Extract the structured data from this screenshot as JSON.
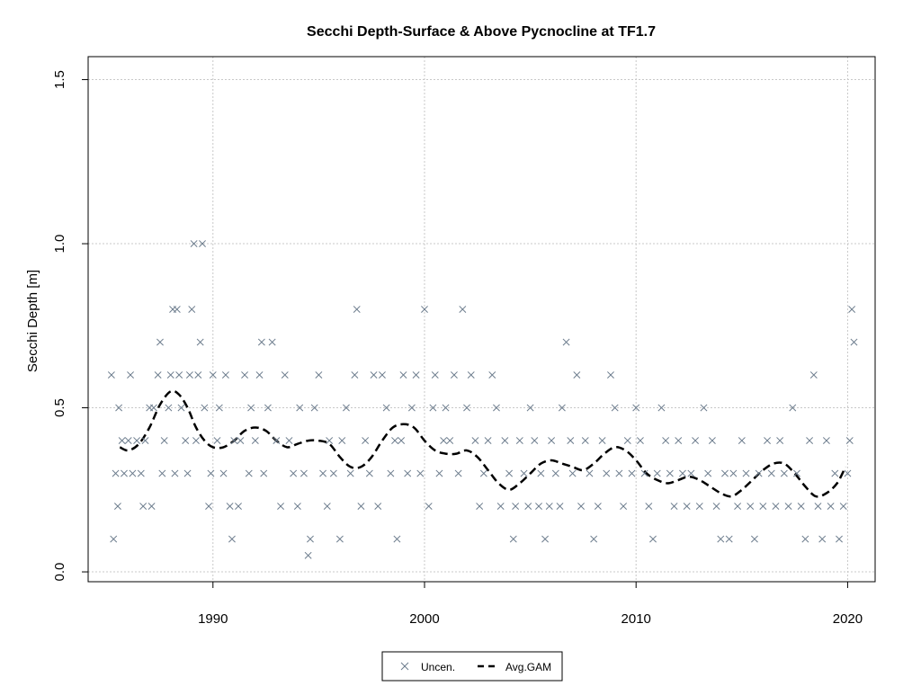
{
  "chart_data": {
    "type": "scatter",
    "title": "Secchi Depth-Surface & Above Pycnocline at TF1.7",
    "xlabel": "",
    "ylabel": "Secchi Depth [m]",
    "xlim": [
      1984.1,
      2021.3
    ],
    "ylim": [
      -0.03,
      1.57
    ],
    "x_ticks": [
      1990,
      2000,
      2010,
      2020
    ],
    "y_ticks": [
      0.0,
      0.5,
      1.0,
      1.5
    ],
    "x_tick_labels": [
      "1990",
      "2000",
      "2010",
      "2020"
    ],
    "y_tick_labels": [
      "0.0",
      "0.5",
      "1.0",
      "1.5"
    ],
    "grid": true,
    "legend": {
      "position": "bottom-center",
      "entries": [
        {
          "label": "Uncen.",
          "marker": "x",
          "color": "#6b7b8c"
        },
        {
          "label": "Avg.GAM",
          "style": "dashed",
          "color": "#000000"
        }
      ]
    },
    "series": [
      {
        "name": "Uncen.",
        "kind": "scatter",
        "marker": "x",
        "color": "#6b7b8c",
        "points": [
          [
            1985.2,
            0.6
          ],
          [
            1985.3,
            0.1
          ],
          [
            1985.4,
            0.3
          ],
          [
            1985.5,
            0.2
          ],
          [
            1985.55,
            0.5
          ],
          [
            1985.7,
            0.4
          ],
          [
            1985.8,
            0.3
          ],
          [
            1986.0,
            0.4
          ],
          [
            1986.1,
            0.6
          ],
          [
            1986.2,
            0.3
          ],
          [
            1986.4,
            0.4
          ],
          [
            1986.6,
            0.3
          ],
          [
            1986.7,
            0.2
          ],
          [
            1986.8,
            0.4
          ],
          [
            1987.0,
            0.5
          ],
          [
            1987.1,
            0.2
          ],
          [
            1987.2,
            0.5
          ],
          [
            1987.4,
            0.6
          ],
          [
            1987.5,
            0.7
          ],
          [
            1987.6,
            0.3
          ],
          [
            1987.7,
            0.4
          ],
          [
            1987.9,
            0.5
          ],
          [
            1988.0,
            0.6
          ],
          [
            1988.1,
            0.8
          ],
          [
            1988.2,
            0.3
          ],
          [
            1988.3,
            0.8
          ],
          [
            1988.4,
            0.6
          ],
          [
            1988.5,
            0.5
          ],
          [
            1988.7,
            0.4
          ],
          [
            1988.8,
            0.3
          ],
          [
            1988.9,
            0.6
          ],
          [
            1989.0,
            0.8
          ],
          [
            1989.1,
            1.0
          ],
          [
            1989.2,
            0.4
          ],
          [
            1989.3,
            0.6
          ],
          [
            1989.4,
            0.7
          ],
          [
            1989.5,
            1.0
          ],
          [
            1989.6,
            0.5
          ],
          [
            1989.8,
            0.2
          ],
          [
            1989.9,
            0.3
          ],
          [
            1990.0,
            0.6
          ],
          [
            1990.2,
            0.4
          ],
          [
            1990.3,
            0.5
          ],
          [
            1990.5,
            0.3
          ],
          [
            1990.6,
            0.6
          ],
          [
            1990.8,
            0.2
          ],
          [
            1990.9,
            0.1
          ],
          [
            1991.0,
            0.4
          ],
          [
            1991.2,
            0.2
          ],
          [
            1991.3,
            0.4
          ],
          [
            1991.5,
            0.6
          ],
          [
            1991.7,
            0.3
          ],
          [
            1991.8,
            0.5
          ],
          [
            1992.0,
            0.4
          ],
          [
            1992.2,
            0.6
          ],
          [
            1992.3,
            0.7
          ],
          [
            1992.4,
            0.3
          ],
          [
            1992.6,
            0.5
          ],
          [
            1992.8,
            0.7
          ],
          [
            1993.0,
            0.4
          ],
          [
            1993.2,
            0.2
          ],
          [
            1993.4,
            0.6
          ],
          [
            1993.6,
            0.4
          ],
          [
            1993.8,
            0.3
          ],
          [
            1994.0,
            0.2
          ],
          [
            1994.1,
            0.5
          ],
          [
            1994.3,
            0.3
          ],
          [
            1994.5,
            0.05
          ],
          [
            1994.6,
            0.1
          ],
          [
            1994.8,
            0.5
          ],
          [
            1995.0,
            0.6
          ],
          [
            1995.2,
            0.3
          ],
          [
            1995.4,
            0.2
          ],
          [
            1995.5,
            0.4
          ],
          [
            1995.7,
            0.3
          ],
          [
            1996.0,
            0.1
          ],
          [
            1996.1,
            0.4
          ],
          [
            1996.3,
            0.5
          ],
          [
            1996.5,
            0.3
          ],
          [
            1996.7,
            0.6
          ],
          [
            1996.8,
            0.8
          ],
          [
            1997.0,
            0.2
          ],
          [
            1997.2,
            0.4
          ],
          [
            1997.4,
            0.3
          ],
          [
            1997.6,
            0.6
          ],
          [
            1997.8,
            0.2
          ],
          [
            1998.0,
            0.6
          ],
          [
            1998.2,
            0.5
          ],
          [
            1998.4,
            0.3
          ],
          [
            1998.6,
            0.4
          ],
          [
            1998.7,
            0.1
          ],
          [
            1998.9,
            0.4
          ],
          [
            1999.0,
            0.6
          ],
          [
            1999.2,
            0.3
          ],
          [
            1999.4,
            0.5
          ],
          [
            1999.6,
            0.6
          ],
          [
            1999.8,
            0.3
          ],
          [
            2000.0,
            0.8
          ],
          [
            2000.2,
            0.2
          ],
          [
            2000.4,
            0.5
          ],
          [
            2000.5,
            0.6
          ],
          [
            2000.7,
            0.3
          ],
          [
            2000.9,
            0.4
          ],
          [
            2001.0,
            0.5
          ],
          [
            2001.2,
            0.4
          ],
          [
            2001.4,
            0.6
          ],
          [
            2001.6,
            0.3
          ],
          [
            2001.8,
            0.8
          ],
          [
            2002.0,
            0.5
          ],
          [
            2002.2,
            0.6
          ],
          [
            2002.4,
            0.4
          ],
          [
            2002.6,
            0.2
          ],
          [
            2002.8,
            0.3
          ],
          [
            2003.0,
            0.4
          ],
          [
            2003.2,
            0.6
          ],
          [
            2003.4,
            0.5
          ],
          [
            2003.6,
            0.2
          ],
          [
            2003.8,
            0.4
          ],
          [
            2004.0,
            0.3
          ],
          [
            2004.2,
            0.1
          ],
          [
            2004.3,
            0.2
          ],
          [
            2004.5,
            0.4
          ],
          [
            2004.7,
            0.3
          ],
          [
            2004.9,
            0.2
          ],
          [
            2005.0,
            0.5
          ],
          [
            2005.2,
            0.4
          ],
          [
            2005.4,
            0.2
          ],
          [
            2005.5,
            0.3
          ],
          [
            2005.7,
            0.1
          ],
          [
            2005.9,
            0.2
          ],
          [
            2006.0,
            0.4
          ],
          [
            2006.2,
            0.3
          ],
          [
            2006.4,
            0.2
          ],
          [
            2006.5,
            0.5
          ],
          [
            2006.7,
            0.7
          ],
          [
            2006.9,
            0.4
          ],
          [
            2007.0,
            0.3
          ],
          [
            2007.2,
            0.6
          ],
          [
            2007.4,
            0.2
          ],
          [
            2007.6,
            0.4
          ],
          [
            2007.8,
            0.3
          ],
          [
            2008.0,
            0.1
          ],
          [
            2008.2,
            0.2
          ],
          [
            2008.4,
            0.4
          ],
          [
            2008.6,
            0.3
          ],
          [
            2008.8,
            0.6
          ],
          [
            2009.0,
            0.5
          ],
          [
            2009.2,
            0.3
          ],
          [
            2009.4,
            0.2
          ],
          [
            2009.6,
            0.4
          ],
          [
            2009.8,
            0.3
          ],
          [
            2010.0,
            0.5
          ],
          [
            2010.2,
            0.4
          ],
          [
            2010.4,
            0.3
          ],
          [
            2010.6,
            0.2
          ],
          [
            2010.8,
            0.1
          ],
          [
            2011.0,
            0.3
          ],
          [
            2011.2,
            0.5
          ],
          [
            2011.4,
            0.4
          ],
          [
            2011.6,
            0.3
          ],
          [
            2011.8,
            0.2
          ],
          [
            2012.0,
            0.4
          ],
          [
            2012.2,
            0.3
          ],
          [
            2012.4,
            0.2
          ],
          [
            2012.6,
            0.3
          ],
          [
            2012.8,
            0.4
          ],
          [
            2013.0,
            0.2
          ],
          [
            2013.2,
            0.5
          ],
          [
            2013.4,
            0.3
          ],
          [
            2013.6,
            0.4
          ],
          [
            2013.8,
            0.2
          ],
          [
            2014.0,
            0.1
          ],
          [
            2014.2,
            0.3
          ],
          [
            2014.4,
            0.1
          ],
          [
            2014.6,
            0.3
          ],
          [
            2014.8,
            0.2
          ],
          [
            2015.0,
            0.4
          ],
          [
            2015.2,
            0.3
          ],
          [
            2015.4,
            0.2
          ],
          [
            2015.6,
            0.1
          ],
          [
            2015.8,
            0.3
          ],
          [
            2016.0,
            0.2
          ],
          [
            2016.2,
            0.4
          ],
          [
            2016.4,
            0.3
          ],
          [
            2016.6,
            0.2
          ],
          [
            2016.8,
            0.4
          ],
          [
            2017.0,
            0.3
          ],
          [
            2017.2,
            0.2
          ],
          [
            2017.4,
            0.5
          ],
          [
            2017.6,
            0.3
          ],
          [
            2017.8,
            0.2
          ],
          [
            2018.0,
            0.1
          ],
          [
            2018.2,
            0.4
          ],
          [
            2018.4,
            0.6
          ],
          [
            2018.6,
            0.2
          ],
          [
            2018.8,
            0.1
          ],
          [
            2019.0,
            0.4
          ],
          [
            2019.2,
            0.2
          ],
          [
            2019.4,
            0.3
          ],
          [
            2019.6,
            0.1
          ],
          [
            2019.8,
            0.2
          ],
          [
            2020.0,
            0.3
          ],
          [
            2020.1,
            0.4
          ],
          [
            2020.2,
            0.8
          ],
          [
            2020.3,
            0.7
          ]
        ]
      },
      {
        "name": "Avg.GAM",
        "kind": "line",
        "style": "dashed",
        "color": "#000000",
        "x": [
          1985.6,
          1986.0,
          1986.5,
          1987.0,
          1987.5,
          1988.0,
          1988.4,
          1988.8,
          1989.2,
          1989.6,
          1990.0,
          1990.5,
          1991.0,
          1991.5,
          1992.0,
          1992.5,
          1993.0,
          1993.5,
          1994.0,
          1994.5,
          1995.0,
          1995.5,
          1996.0,
          1996.5,
          1997.0,
          1997.5,
          1998.0,
          1998.5,
          1999.0,
          1999.5,
          2000.0,
          2000.5,
          2001.0,
          2001.5,
          2002.0,
          2002.5,
          2003.0,
          2003.5,
          2004.0,
          2004.5,
          2005.0,
          2005.5,
          2006.0,
          2006.5,
          2007.0,
          2007.5,
          2008.0,
          2008.5,
          2009.0,
          2009.5,
          2010.0,
          2010.5,
          2011.0,
          2011.5,
          2012.0,
          2012.5,
          2013.0,
          2013.5,
          2014.0,
          2014.5,
          2015.0,
          2015.5,
          2016.0,
          2016.5,
          2017.0,
          2017.5,
          2018.0,
          2018.5,
          2019.0,
          2019.5,
          2019.9
        ],
        "values": [
          0.38,
          0.37,
          0.39,
          0.44,
          0.51,
          0.55,
          0.54,
          0.5,
          0.44,
          0.4,
          0.38,
          0.38,
          0.4,
          0.43,
          0.44,
          0.43,
          0.4,
          0.38,
          0.39,
          0.4,
          0.4,
          0.39,
          0.35,
          0.32,
          0.32,
          0.35,
          0.4,
          0.44,
          0.45,
          0.44,
          0.4,
          0.37,
          0.36,
          0.36,
          0.37,
          0.35,
          0.31,
          0.27,
          0.25,
          0.27,
          0.3,
          0.33,
          0.34,
          0.33,
          0.32,
          0.31,
          0.33,
          0.36,
          0.38,
          0.37,
          0.34,
          0.3,
          0.28,
          0.27,
          0.28,
          0.29,
          0.28,
          0.26,
          0.24,
          0.23,
          0.25,
          0.28,
          0.31,
          0.33,
          0.33,
          0.3,
          0.26,
          0.23,
          0.24,
          0.27,
          0.32
        ]
      }
    ]
  }
}
